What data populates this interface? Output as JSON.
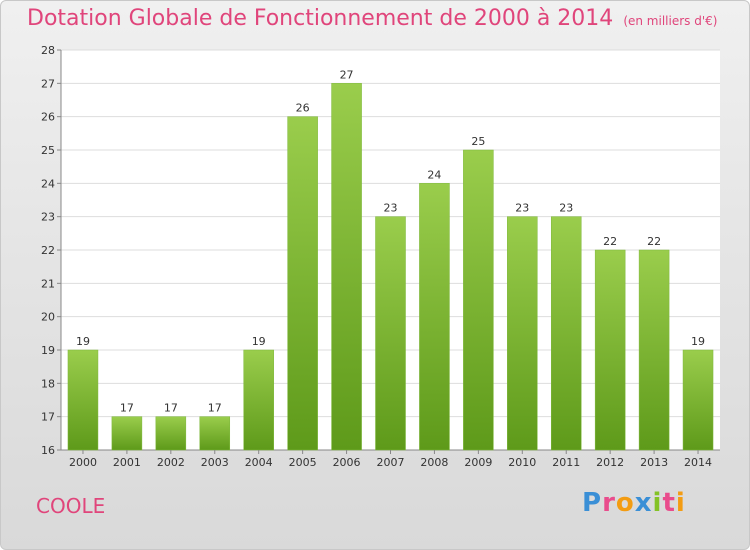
{
  "header": {
    "title": "Dotation Globale de Fonctionnement de 2000 à 2014",
    "unit": "(en milliers d'€)"
  },
  "footer": {
    "commune": "COOLE",
    "logo_text": "Proxiti"
  },
  "colors": {
    "title": "#e0457b",
    "bar_top": "#9acd4c",
    "bar_bottom": "#5e9a1a",
    "logo": [
      "#3a8fd6",
      "#e94c8c",
      "#f39c12",
      "#3a8fd6",
      "#84c225",
      "#e94c8c",
      "#f39c12"
    ]
  },
  "chart_data": {
    "type": "bar",
    "title": "Dotation Globale de Fonctionnement de 2000 à 2014",
    "subtitle": "(en milliers d'€)",
    "categories": [
      "2000",
      "2001",
      "2002",
      "2003",
      "2004",
      "2005",
      "2006",
      "2007",
      "2008",
      "2009",
      "2010",
      "2011",
      "2012",
      "2013",
      "2014"
    ],
    "values": [
      19,
      17,
      17,
      17,
      19,
      26,
      27,
      23,
      24,
      25,
      23,
      23,
      22,
      22,
      19
    ],
    "ylim": [
      16,
      28
    ],
    "yticks": [
      16,
      17,
      18,
      19,
      20,
      21,
      22,
      23,
      24,
      25,
      26,
      27,
      28
    ],
    "grid": true,
    "xlabel": "",
    "ylabel": ""
  }
}
